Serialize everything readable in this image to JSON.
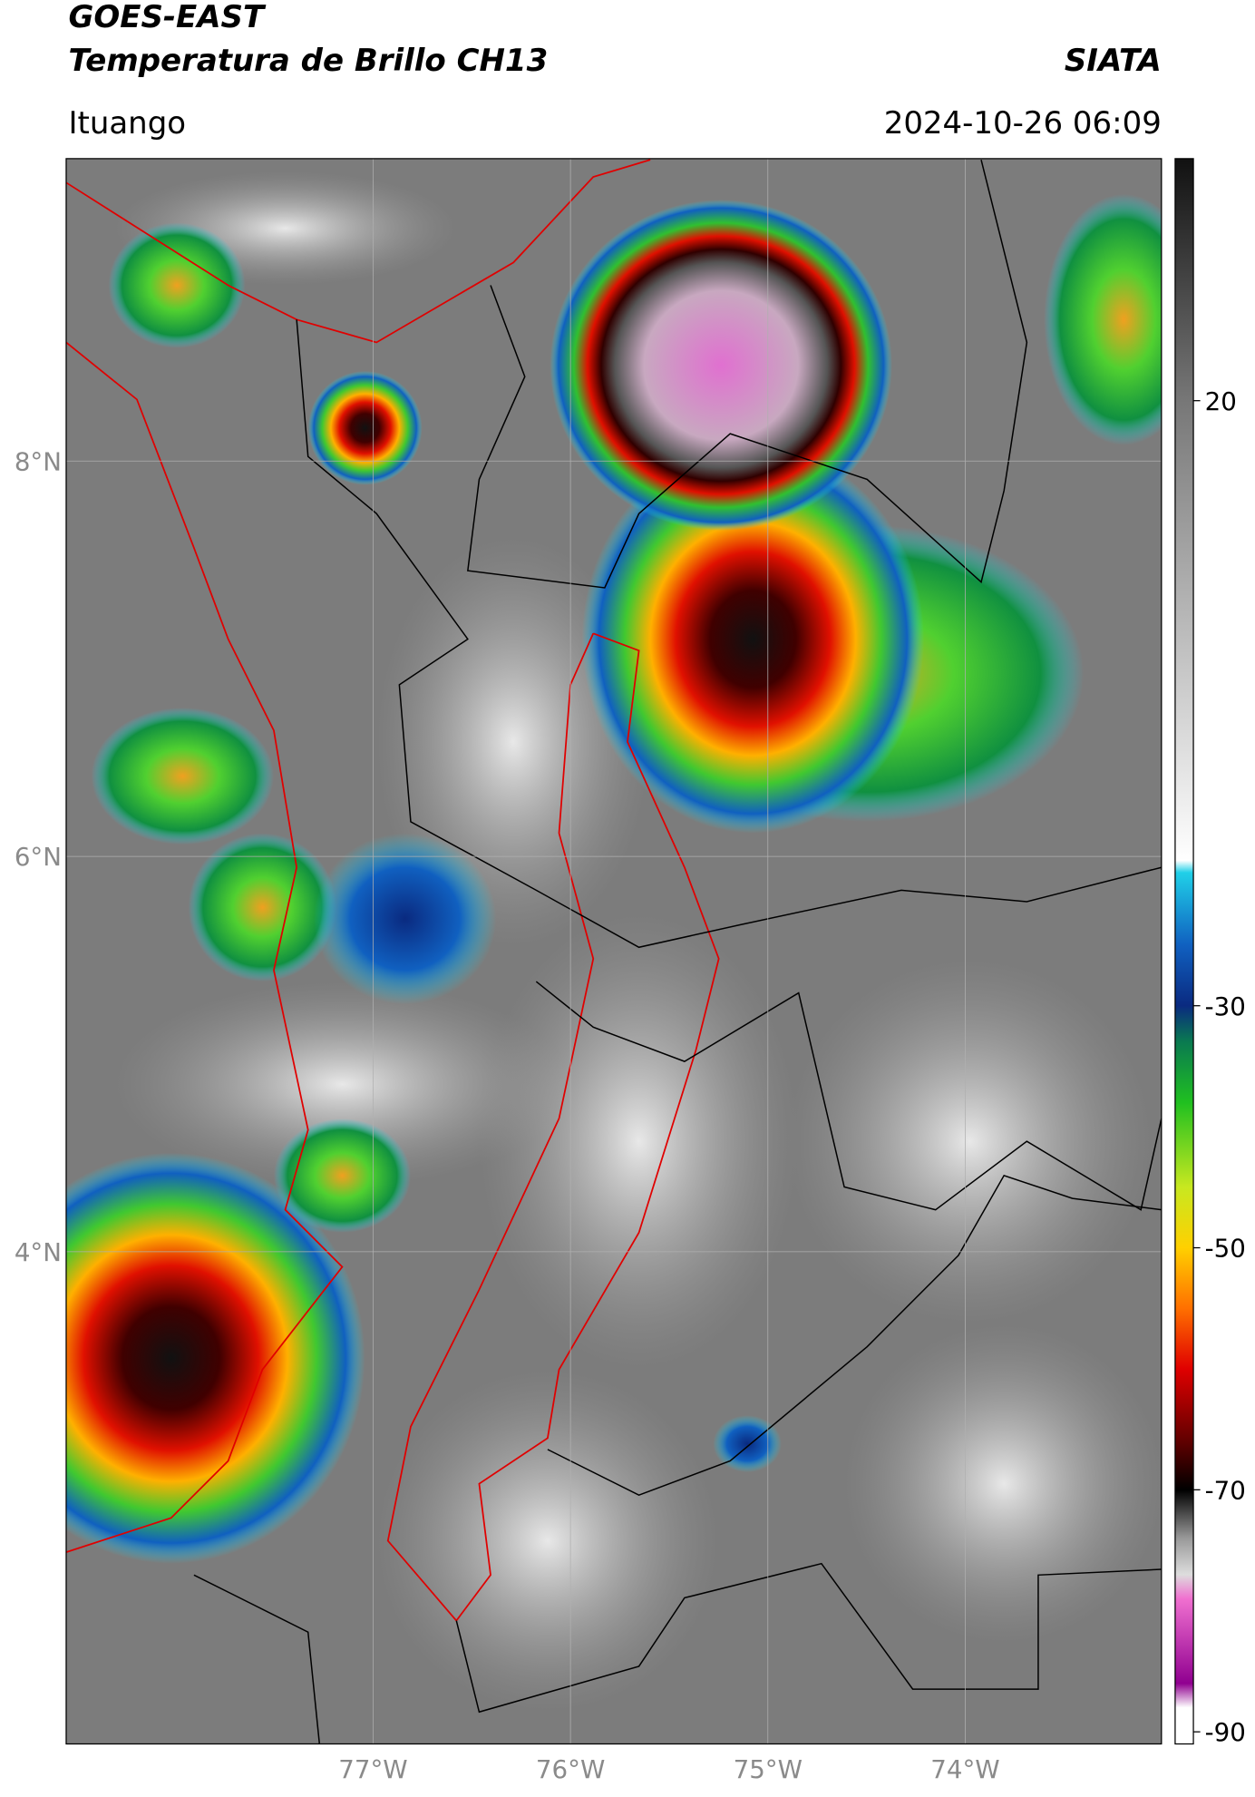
{
  "header": {
    "source": "GOES-EAST",
    "product": "Temperatura de Brillo CH13",
    "brand": "SIATA",
    "region": "Ituango",
    "timestamp": "2024-10-26 06:09"
  },
  "map": {
    "xlim": [
      -78.555,
      -73.006
    ],
    "ylim": [
      1.51,
      9.53
    ],
    "xticks": [
      {
        "value": -77,
        "label": "77°W"
      },
      {
        "value": -76,
        "label": "76°W"
      },
      {
        "value": -75,
        "label": "75°W"
      },
      {
        "value": -74,
        "label": "74°W"
      }
    ],
    "yticks": [
      {
        "value": 8,
        "label": "8°N"
      },
      {
        "value": 6,
        "label": "6°N"
      },
      {
        "value": 4,
        "label": "4°N"
      }
    ],
    "grid": true
  },
  "colorbar": {
    "lim": [
      -91,
      40
    ],
    "ticks": [
      20,
      -30,
      -50,
      -70,
      -90
    ],
    "stops": [
      [
        40,
        "#111111"
      ],
      [
        20,
        "#777777"
      ],
      [
        -18,
        "#ffffff"
      ],
      [
        -19,
        "#20d0e8"
      ],
      [
        -25,
        "#1060c0"
      ],
      [
        -30,
        "#0a2a80"
      ],
      [
        -33,
        "#0a7a50"
      ],
      [
        -38,
        "#20c020"
      ],
      [
        -45,
        "#c8e820"
      ],
      [
        -50,
        "#ffd000"
      ],
      [
        -55,
        "#ff7000"
      ],
      [
        -60,
        "#e00000"
      ],
      [
        -66,
        "#600000"
      ],
      [
        -70,
        "#000000"
      ],
      [
        -74,
        "#999999"
      ],
      [
        -77,
        "#dddddd"
      ],
      [
        -79,
        "#f070d0"
      ],
      [
        -86,
        "#900090"
      ],
      [
        -88,
        "#ffffff"
      ],
      [
        -91,
        "#ffffff"
      ]
    ]
  }
}
